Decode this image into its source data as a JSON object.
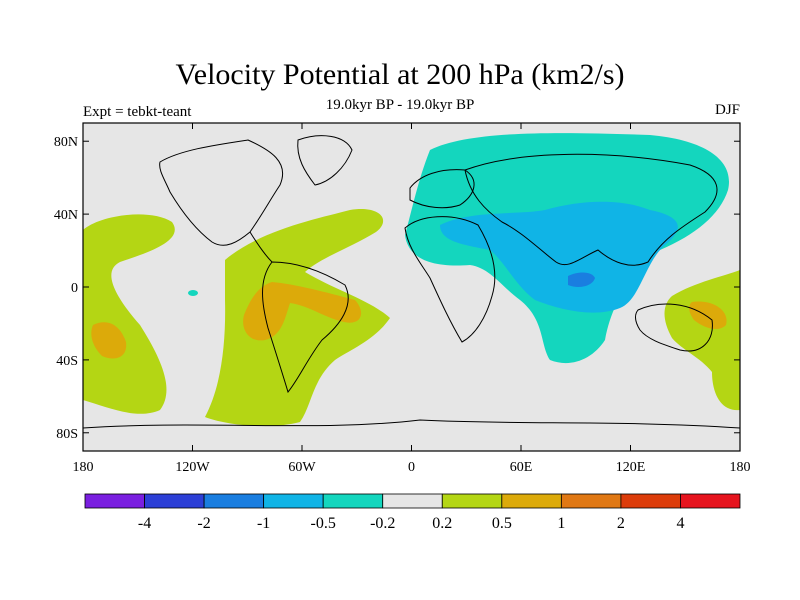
{
  "title": "Velocity Potential at 200 hPa (km2/s)",
  "subtitle": "19.0kyr BP - 19.0kyr BP",
  "left_label": "Expt = tebkt-teant",
  "right_label": "DJF",
  "map": {
    "projection": "cylindrical-equidistant",
    "lon_range": [
      -180,
      180
    ],
    "lat_range": [
      -90,
      90
    ],
    "background_color": "#e6e6e6",
    "lat_ticks": [
      {
        "value": 80,
        "label": "80N"
      },
      {
        "value": 40,
        "label": "40N"
      },
      {
        "value": 0,
        "label": "0"
      },
      {
        "value": -40,
        "label": "40S"
      },
      {
        "value": -80,
        "label": "80S"
      }
    ],
    "lon_ticks": [
      {
        "value": -180,
        "label": "180"
      },
      {
        "value": -120,
        "label": "120W"
      },
      {
        "value": -60,
        "label": "60W"
      },
      {
        "value": 0,
        "label": "0"
      },
      {
        "value": 60,
        "label": "60E"
      },
      {
        "value": 120,
        "label": "120E"
      },
      {
        "value": 180,
        "label": "180"
      }
    ]
  },
  "colorbar": {
    "colors": [
      "#7a1fe0",
      "#2c3fd6",
      "#1a7ee0",
      "#10b4e6",
      "#14d6be",
      "#e6e6e6",
      "#b4d614",
      "#dcaa0a",
      "#e07814",
      "#dc3c0a",
      "#e6141e"
    ],
    "labels": [
      "-4",
      "-2",
      "-1",
      "-0.5",
      "-0.2",
      "0.2",
      "0.5",
      "1",
      "2",
      "4"
    ]
  }
}
